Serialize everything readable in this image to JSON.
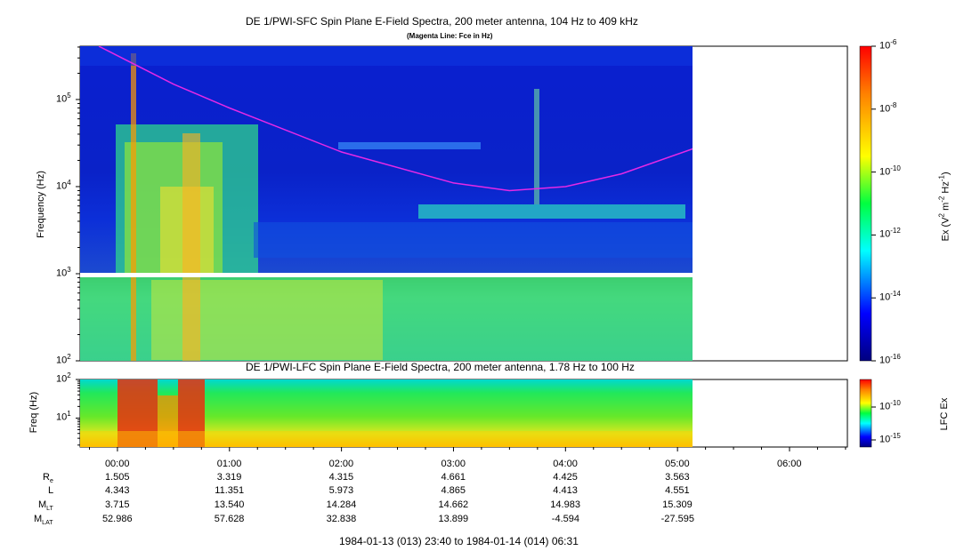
{
  "page": {
    "title_top": "DE 1/PWI-SFC  Spin Plane E-Field Spectra, 200 meter antenna, 104 Hz to 409 kHz",
    "subtitle_top": "(Magenta Line: Fce in Hz)",
    "title_bottom": "DE 1/PWI-LFC  Spin Plane E-Field Spectra, 200 meter antenna, 1.78 Hz to 100 Hz",
    "footer": "1984-01-13 (013) 23:40 to 1984-01-14 (014) 06:31"
  },
  "chart_data": [
    {
      "type": "heatmap",
      "title": "DE 1/PWI-SFC  Spin Plane E-Field Spectra, 200 meter antenna, 104 Hz to 409 kHz",
      "subtitle": "(Magenta Line: Fce in Hz)",
      "ylabel": "Frequency (Hz)",
      "yscale": "log",
      "ylim": [
        100,
        409000
      ],
      "yticks": [
        "10^2",
        "10^3",
        "10^4",
        "10^5"
      ],
      "xlim": [
        "23:40",
        "06:31"
      ],
      "data_end": "05:10",
      "data_gap_hz": 1000,
      "colorbar": {
        "label": "Ex (V^2 m^-2 Hz^-1)",
        "scale": "log",
        "range": [
          1e-16,
          1e-06
        ],
        "ticks": [
          "10^-6",
          "10^-8",
          "10^-10",
          "10^-12",
          "10^-14",
          "10^-16"
        ]
      },
      "fce_line": {
        "color": "#e629e6",
        "points": [
          [
            "23:50",
            409000
          ],
          [
            "00:30",
            150000
          ],
          [
            "01:00",
            80000
          ],
          [
            "02:00",
            25000
          ],
          [
            "03:00",
            11000
          ],
          [
            "03:30",
            9000
          ],
          [
            "04:00",
            10000
          ],
          [
            "04:30",
            14000
          ],
          [
            "05:10",
            28000
          ]
        ]
      }
    },
    {
      "type": "heatmap",
      "title": "DE 1/PWI-LFC  Spin Plane E-Field Spectra, 200 meter antenna, 1.78 Hz to 100 Hz",
      "ylabel": "Freq (Hz)",
      "yscale": "log",
      "ylim": [
        1.78,
        100
      ],
      "yticks": [
        "10^1",
        "10^2"
      ],
      "data_end": "05:10",
      "colorbar": {
        "label": "LFC Ex",
        "scale": "log",
        "ticks": [
          "10^-10",
          "10^-15"
        ]
      }
    }
  ],
  "x_axis": {
    "ticks": [
      "00:00",
      "01:00",
      "02:00",
      "03:00",
      "04:00",
      "05:00",
      "06:00"
    ]
  },
  "ephemeris": {
    "rows": [
      {
        "label": "R",
        "sub": "e",
        "values": [
          "1.505",
          "3.319",
          "4.315",
          "4.661",
          "4.425",
          "3.563"
        ]
      },
      {
        "label": "L",
        "sub": "",
        "values": [
          "4.343",
          "11.351",
          "5.973",
          "4.865",
          "4.413",
          "4.551"
        ]
      },
      {
        "label": "M",
        "sub": "LT",
        "values": [
          "3.715",
          "13.540",
          "14.284",
          "14.662",
          "14.983",
          "15.309"
        ]
      },
      {
        "label": "M",
        "sub": "LAT",
        "values": [
          "52.986",
          "57.628",
          "32.838",
          "13.899",
          "-4.594",
          "-27.595"
        ]
      }
    ]
  }
}
